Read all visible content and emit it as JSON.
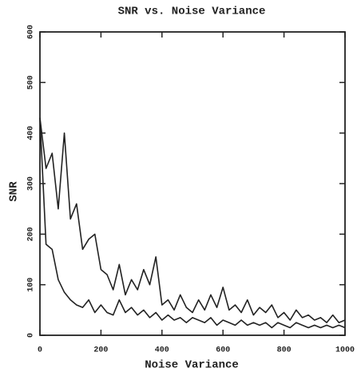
{
  "chart_data": {
    "type": "line",
    "title": "SNR vs. Noise Variance",
    "x_label": "Noise Variance",
    "y_label": "SNR",
    "x": [
      0,
      20,
      40,
      60,
      80,
      100,
      120,
      140,
      160,
      180,
      200,
      220,
      240,
      260,
      280,
      300,
      320,
      340,
      360,
      380,
      400,
      420,
      440,
      460,
      480,
      500,
      520,
      540,
      560,
      580,
      600,
      620,
      640,
      660,
      680,
      700,
      720,
      740,
      760,
      780,
      800,
      820,
      840,
      860,
      880,
      900,
      920,
      940,
      960,
      980,
      1000
    ],
    "series": [
      {
        "color": "#222222",
        "values": [
          430,
          330,
          360,
          250,
          400,
          230,
          260,
          170,
          190,
          200,
          130,
          120,
          90,
          140,
          80,
          110,
          90,
          130,
          100,
          155,
          60,
          70,
          50,
          80,
          55,
          45,
          70,
          50,
          80,
          55,
          95,
          50,
          60,
          45,
          70,
          40,
          55,
          45,
          60,
          35,
          45,
          30,
          50,
          35,
          40,
          30,
          35,
          25,
          40,
          25,
          30
        ]
      },
      {
        "color": "#222222",
        "values": [
          430,
          180,
          170,
          110,
          85,
          70,
          60,
          55,
          70,
          45,
          60,
          45,
          40,
          70,
          45,
          55,
          40,
          50,
          35,
          45,
          30,
          40,
          30,
          35,
          25,
          35,
          30,
          25,
          35,
          20,
          30,
          25,
          20,
          30,
          20,
          25,
          20,
          25,
          15,
          25,
          20,
          15,
          25,
          20,
          15,
          20,
          15,
          20,
          15,
          20,
          15
        ]
      }
    ],
    "xlim": [
      0,
      1000
    ],
    "xticks": [
      0,
      200,
      400,
      600,
      800,
      1000
    ],
    "ylim": [
      0,
      600
    ],
    "yticks": [
      0,
      100,
      200,
      300,
      400,
      500,
      600
    ]
  }
}
